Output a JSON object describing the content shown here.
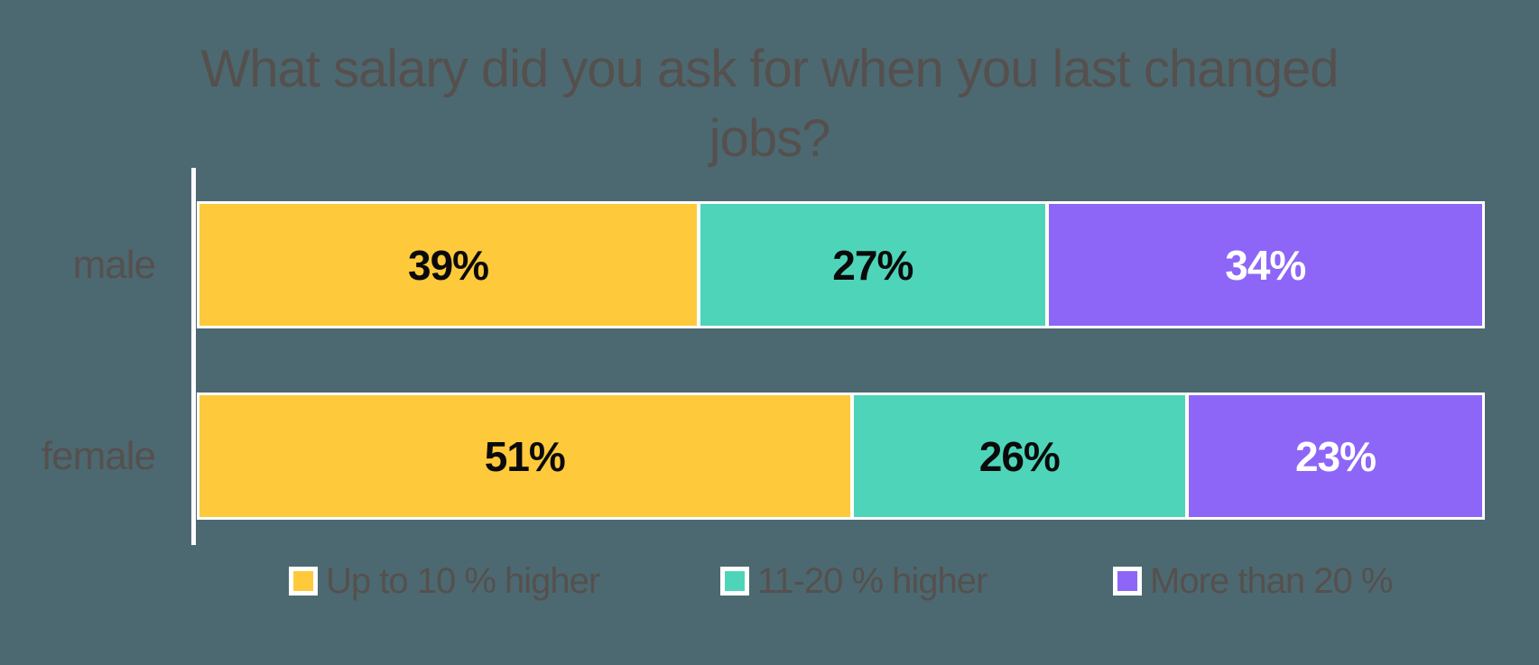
{
  "colors": {
    "background": "#4C6971",
    "text": "#55504E",
    "axis_line": "#FFFFFF",
    "bar_border": "#FFFFFF",
    "segment_gap": "#FFFFFF",
    "legend_swatch_border": "#FFFFFF",
    "label_on_light": "#0A0A0A",
    "label_on_dark": "#FFFFFF",
    "series": [
      "#FFC93C",
      "#4ED5B9",
      "#8D66F7"
    ]
  },
  "chart_data": {
    "type": "bar",
    "orientation": "horizontal",
    "stacked": true,
    "stacked_total": 100,
    "title": "What salary did you ask for when you last changed jobs?",
    "title_lines": [
      "What salary did you ask for when you last changed",
      "jobs?"
    ],
    "categories": [
      "male",
      "female"
    ],
    "series": [
      {
        "name": "Up to 10 % higher",
        "color": "#FFC93C",
        "label_color": "#0A0A0A",
        "values": [
          39,
          51
        ]
      },
      {
        "name": "11-20 % higher",
        "color": "#4ED5B9",
        "label_color": "#0A0A0A",
        "values": [
          27,
          26
        ]
      },
      {
        "name": "More than 20 %",
        "color": "#8D66F7",
        "label_color": "#FFFFFF",
        "values": [
          34,
          23
        ]
      }
    ],
    "data_labels": {
      "male": [
        "39%",
        "27%",
        "34%"
      ],
      "female": [
        "51%",
        "26%",
        "23%"
      ]
    },
    "value_suffix": "%",
    "xlim": [
      0,
      100
    ],
    "grid": false,
    "legend_position": "bottom"
  }
}
